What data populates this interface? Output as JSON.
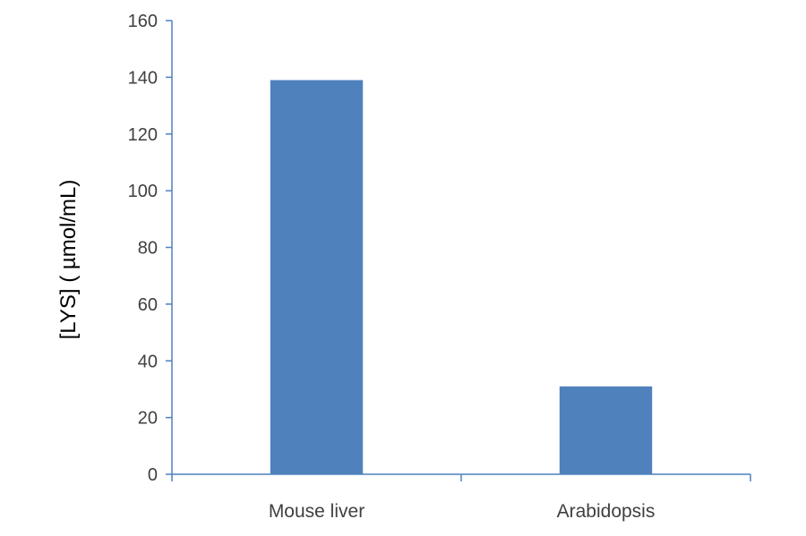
{
  "chart_data": {
    "type": "bar",
    "title": "",
    "xlabel": "",
    "ylabel": "[LYS] ( µmol/mL)",
    "categories": [
      "Mouse liver",
      "Arabidopsis"
    ],
    "values": [
      139,
      31
    ],
    "ylim": [
      0,
      160
    ],
    "yticks": [
      0,
      20,
      40,
      60,
      80,
      100,
      120,
      140,
      160
    ],
    "grid": false,
    "legend": "none",
    "bar_color": "#4f81bd",
    "axis_color": "#4f81bd"
  }
}
